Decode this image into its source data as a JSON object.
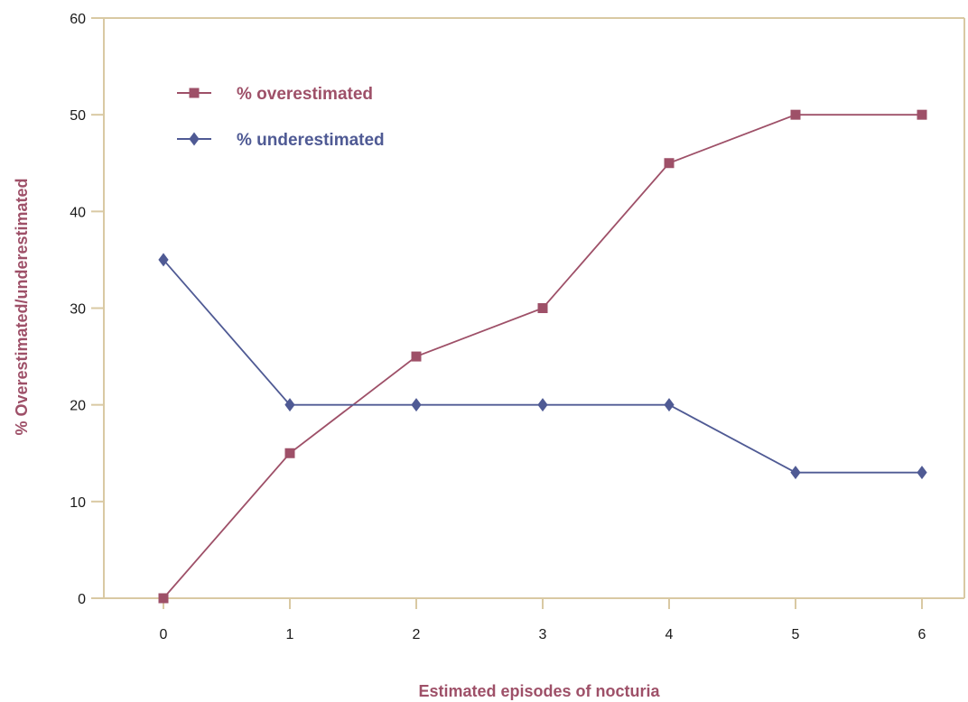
{
  "colors": {
    "axis": "#d9c9a3",
    "overestimated": "#9e5068",
    "underestimated": "#4f5a94",
    "axis_title": "#9e5068"
  },
  "chart_data": {
    "type": "line",
    "title": "",
    "xlabel": "Estimated episodes of nocturia",
    "ylabel": "% Overestimated/underestimated",
    "x": [
      0,
      1,
      2,
      3,
      4,
      5,
      6
    ],
    "xlim": [
      0,
      6
    ],
    "ylim": [
      0,
      60
    ],
    "xticks": [
      "0",
      "1",
      "2",
      "3",
      "4",
      "5",
      "6"
    ],
    "yticks": [
      "0",
      "10",
      "20",
      "30",
      "40",
      "50",
      "60"
    ],
    "grid": false,
    "legend_position": "top-left",
    "series": [
      {
        "name": "% overestimated",
        "marker": "square",
        "color": "#9e5068",
        "values": [
          0,
          15,
          25,
          30,
          45,
          50,
          50
        ]
      },
      {
        "name": "% underestimated",
        "marker": "diamond",
        "color": "#4f5a94",
        "values": [
          35,
          20,
          20,
          20,
          20,
          13,
          13
        ]
      }
    ]
  }
}
